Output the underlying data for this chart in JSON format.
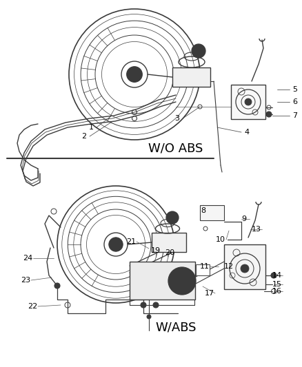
{
  "background_color": "#ffffff",
  "line_color": "#3a3a3a",
  "text_color": "#000000",
  "wo_abs_label": "W/O ABS",
  "w_abs_label": "W/ABS",
  "fontsize_labels": 8,
  "fontsize_section": 13,
  "dpi": 100,
  "figw": 4.38,
  "figh": 5.33
}
